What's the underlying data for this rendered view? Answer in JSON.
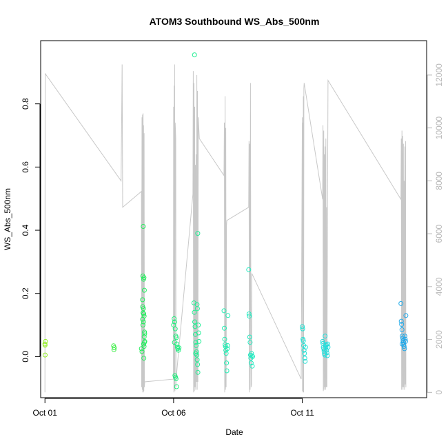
{
  "chart_data": {
    "type": "scatter",
    "title": "ATOM3 Southbound WS_Abs_500nm",
    "xlabel": "Date",
    "ylabel": "WS_Abs_500nm",
    "xlim": [
      "2016-09-30T20:00",
      "2016-10-15T20:00"
    ],
    "ylim": [
      -0.13,
      1.0
    ],
    "y2lim": [
      -200,
      13300
    ],
    "x_ticks": [
      {
        "label": "Oct 01",
        "value": "2016-10-01"
      },
      {
        "label": "Oct 06",
        "value": "2016-10-06"
      },
      {
        "label": "Oct 11",
        "value": "2016-10-11"
      }
    ],
    "y_ticks": [
      {
        "label": "0.0",
        "value": 0.0
      },
      {
        "label": "0.2",
        "value": 0.2
      },
      {
        "label": "0.4",
        "value": 0.4
      },
      {
        "label": "0.6",
        "value": 0.6
      },
      {
        "label": "0.8",
        "value": 0.8
      }
    ],
    "y2_ticks": [
      {
        "label": "0",
        "value": 0
      },
      {
        "label": "2000",
        "value": 2000
      },
      {
        "label": "4000",
        "value": 4000
      },
      {
        "label": "6000",
        "value": 6000
      },
      {
        "label": "8000",
        "value": 8000
      },
      {
        "label": "10000",
        "value": 10000
      },
      {
        "label": "12000",
        "value": 12000
      }
    ],
    "grid": false,
    "colors": {
      "line": "#c8c8c8",
      "axis": "#000000",
      "axis_right": "#b8b8b8"
    },
    "point_color_scale": [
      "#99ee22",
      "#22ee55",
      "#22eebb",
      "#22dddd",
      "#2299ee"
    ],
    "series": [
      {
        "kind": "points",
        "points": [
          [
            "2016-10-01T00:00",
            0.04
          ],
          [
            "2016-10-01T00:30",
            0.048
          ],
          [
            "2016-10-01T00:05",
            0.036
          ],
          [
            "2016-10-01T00:10",
            0.005
          ],
          [
            "2016-10-03T16:00",
            0.034
          ],
          [
            "2016-10-03T16:20",
            0.022
          ],
          [
            "2016-10-03T16:40",
            0.028
          ],
          [
            "2016-10-04T18:00",
            0.025
          ],
          [
            "2016-10-04T18:30",
            0.016
          ],
          [
            "2016-10-04T19:00",
            0.18
          ],
          [
            "2016-10-04T19:20",
            0.255
          ],
          [
            "2016-10-04T19:40",
            0.412
          ],
          [
            "2016-10-04T20:00",
            0.245
          ],
          [
            "2016-10-04T20:20",
            0.25
          ],
          [
            "2016-10-04T20:40",
            0.21
          ],
          [
            "2016-10-04T19:10",
            0.158
          ],
          [
            "2016-10-04T19:30",
            0.138
          ],
          [
            "2016-10-04T19:50",
            0.152
          ],
          [
            "2016-10-04T20:10",
            0.135
          ],
          [
            "2016-10-04T20:30",
            0.128
          ],
          [
            "2016-10-04T20:50",
            0.078
          ],
          [
            "2016-10-04T21:00",
            0.072
          ],
          [
            "2016-10-04T20:05",
            0.04
          ],
          [
            "2016-10-04T20:25",
            0.032
          ],
          [
            "2016-10-04T20:45",
            0.045
          ],
          [
            "2016-10-04T21:10",
            0.048
          ],
          [
            "2016-10-04T20:15",
            -0.005
          ],
          [
            "2016-10-04T19:55",
            0.11
          ],
          [
            "2016-10-04T20:35",
            0.063
          ],
          [
            "2016-10-04T19:05",
            0.118
          ],
          [
            "2016-10-04T19:25",
            0.1
          ],
          [
            "2016-10-06T00:00",
            0.1
          ],
          [
            "2016-10-06T00:30",
            0.12
          ],
          [
            "2016-10-06T01:00",
            0.11
          ],
          [
            "2016-10-06T01:30",
            0.088
          ],
          [
            "2016-10-06T02:00",
            0.065
          ],
          [
            "2016-10-06T02:30",
            0.06
          ],
          [
            "2016-10-06T03:00",
            0.04
          ],
          [
            "2016-10-06T03:30",
            0.03
          ],
          [
            "2016-10-06T04:00",
            0.025
          ],
          [
            "2016-10-06T04:30",
            0.02
          ],
          [
            "2016-10-06T05:00",
            0.028
          ],
          [
            "2016-10-06T01:15",
            -0.06
          ],
          [
            "2016-10-06T01:45",
            -0.065
          ],
          [
            "2016-10-06T02:15",
            -0.07
          ],
          [
            "2016-10-06T02:45",
            -0.095
          ],
          [
            "2016-10-06T00:45",
            0.045
          ],
          [
            "2016-10-06T19:00",
            0.17
          ],
          [
            "2016-10-06T19:20",
            0.14
          ],
          [
            "2016-10-06T19:40",
            0.11
          ],
          [
            "2016-10-06T20:00",
            0.095
          ],
          [
            "2016-10-06T20:20",
            0.07
          ],
          [
            "2016-10-06T20:40",
            0.045
          ],
          [
            "2016-10-06T21:00",
            0.035
          ],
          [
            "2016-10-06T21:20",
            0.015
          ],
          [
            "2016-10-06T21:40",
            0.005
          ],
          [
            "2016-10-06T22:00",
            -0.01
          ],
          [
            "2016-10-06T22:20",
            -0.025
          ],
          [
            "2016-10-06T22:40",
            -0.05
          ],
          [
            "2016-10-06T21:50",
            0.165
          ],
          [
            "2016-10-06T22:10",
            0.152
          ],
          [
            "2016-10-06T22:30",
            0.39
          ],
          [
            "2016-10-06T23:00",
            0.1
          ],
          [
            "2016-10-06T23:20",
            0.075
          ],
          [
            "2016-10-06T23:40",
            0.048
          ],
          [
            "2016-10-06T19:30",
            0.955
          ],
          [
            "2016-10-06T20:30",
            0.01
          ],
          [
            "2016-10-07T23:00",
            0.145
          ],
          [
            "2016-10-07T23:20",
            0.09
          ],
          [
            "2016-10-07T23:40",
            0.055
          ],
          [
            "2016-10-08T00:00",
            0.038
          ],
          [
            "2016-10-08T00:20",
            0.032
          ],
          [
            "2016-10-08T00:40",
            0.02
          ],
          [
            "2016-10-08T01:00",
            0.01
          ],
          [
            "2016-10-08T01:20",
            -0.02
          ],
          [
            "2016-10-08T01:40",
            -0.045
          ],
          [
            "2016-10-08T02:00",
            0.025
          ],
          [
            "2016-10-08T02:20",
            0.035
          ],
          [
            "2016-10-08T02:40",
            0.13
          ],
          [
            "2016-10-08T22:00",
            0.275
          ],
          [
            "2016-10-08T22:20",
            0.135
          ],
          [
            "2016-10-08T22:40",
            0.128
          ],
          [
            "2016-10-08T23:00",
            0.062
          ],
          [
            "2016-10-08T23:20",
            0.045
          ],
          [
            "2016-10-08T23:40",
            0.005
          ],
          [
            "2016-10-09T00:00",
            -0.005
          ],
          [
            "2016-10-09T00:20",
            -0.02
          ],
          [
            "2016-10-09T00:40",
            0.01
          ],
          [
            "2016-10-09T01:00",
            0.003
          ],
          [
            "2016-10-09T01:20",
            -0.03
          ],
          [
            "2016-10-09T01:40",
            0.0
          ],
          [
            "2016-10-11T00:00",
            0.095
          ],
          [
            "2016-10-11T00:20",
            0.088
          ],
          [
            "2016-10-11T00:40",
            0.055
          ],
          [
            "2016-10-11T01:00",
            0.05
          ],
          [
            "2016-10-11T01:20",
            0.035
          ],
          [
            "2016-10-11T01:40",
            0.02
          ],
          [
            "2016-10-11T02:00",
            0.01
          ],
          [
            "2016-10-11T02:20",
            -0.005
          ],
          [
            "2016-10-11T02:40",
            -0.015
          ],
          [
            "2016-10-11T03:00",
            0.03
          ],
          [
            "2016-10-11T19:00",
            0.048
          ],
          [
            "2016-10-11T19:20",
            0.042
          ],
          [
            "2016-10-11T19:40",
            0.03
          ],
          [
            "2016-10-11T20:00",
            0.025
          ],
          [
            "2016-10-11T20:20",
            0.018
          ],
          [
            "2016-10-11T20:40",
            0.01
          ],
          [
            "2016-10-11T21:00",
            0.005
          ],
          [
            "2016-10-11T21:20",
            0.065
          ],
          [
            "2016-10-11T21:40",
            0.035
          ],
          [
            "2016-10-11T22:00",
            0.028
          ],
          [
            "2016-10-11T22:20",
            0.038
          ],
          [
            "2016-10-11T22:40",
            0.02
          ],
          [
            "2016-10-11T23:00",
            0.012
          ],
          [
            "2016-10-11T23:20",
            0.003
          ],
          [
            "2016-10-11T23:40",
            0.04
          ],
          [
            "2016-10-12T00:00",
            0.03
          ],
          [
            "2016-10-14T20:00",
            0.168
          ],
          [
            "2016-10-14T20:20",
            0.112
          ],
          [
            "2016-10-14T20:40",
            0.102
          ],
          [
            "2016-10-14T21:00",
            0.085
          ],
          [
            "2016-10-14T21:20",
            0.065
          ],
          [
            "2016-10-14T21:40",
            0.058
          ],
          [
            "2016-10-14T22:00",
            0.05
          ],
          [
            "2016-10-14T22:20",
            0.045
          ],
          [
            "2016-10-14T22:40",
            0.038
          ],
          [
            "2016-10-14T23:00",
            0.032
          ],
          [
            "2016-10-14T23:20",
            0.025
          ],
          [
            "2016-10-14T23:40",
            0.065
          ],
          [
            "2016-10-15T00:00",
            0.055
          ],
          [
            "2016-10-15T00:20",
            0.048
          ],
          [
            "2016-10-15T00:40",
            0.13
          ],
          [
            "2016-10-14T21:10",
            0.04
          ]
        ]
      },
      {
        "kind": "line-right-axis",
        "points": [
          [
            "2016-10-01T00:00",
            0
          ],
          [
            "2016-10-01T00:10",
            12000
          ],
          [
            "2016-10-01T00:20",
            12050
          ],
          [
            "2016-10-03T23:00",
            8000
          ],
          [
            "2016-10-04T00:00",
            12400
          ],
          [
            "2016-10-04T00:30",
            7000
          ],
          [
            "2016-10-04T18:00",
            7600
          ],
          [
            "2016-10-04T18:10",
            200
          ],
          [
            "2016-10-04T18:30",
            10400
          ],
          [
            "2016-10-04T18:45",
            100
          ],
          [
            "2016-10-04T19:00",
            10500
          ],
          [
            "2016-10-04T19:15",
            0
          ],
          [
            "2016-10-04T19:30",
            10550
          ],
          [
            "2016-10-04T19:45",
            0
          ],
          [
            "2016-10-04T20:00",
            10100
          ],
          [
            "2016-10-04T20:15",
            50
          ],
          [
            "2016-10-04T20:30",
            9800
          ],
          [
            "2016-10-04T20:45",
            200
          ],
          [
            "2016-10-04T21:00",
            400
          ],
          [
            "2016-10-05T23:50",
            500
          ],
          [
            "2016-10-06T00:00",
            10800
          ],
          [
            "2016-10-06T00:15",
            0
          ],
          [
            "2016-10-06T00:30",
            11600
          ],
          [
            "2016-10-06T00:45",
            100
          ],
          [
            "2016-10-06T01:00",
            12400
          ],
          [
            "2016-10-06T01:15",
            50
          ],
          [
            "2016-10-06T01:30",
            10200
          ],
          [
            "2016-10-06T02:00",
            9600
          ],
          [
            "2016-10-06T02:10",
            200
          ],
          [
            "2016-10-06T02:20",
            500
          ],
          [
            "2016-10-06T18:00",
            7500
          ],
          [
            "2016-10-06T18:20",
            12150
          ],
          [
            "2016-10-06T18:40",
            0
          ],
          [
            "2016-10-06T19:00",
            11700
          ],
          [
            "2016-10-06T19:20",
            50
          ],
          [
            "2016-10-06T19:40",
            10800
          ],
          [
            "2016-10-06T20:00",
            200
          ],
          [
            "2016-10-06T20:20",
            8600
          ],
          [
            "2016-10-06T20:40",
            100
          ],
          [
            "2016-10-06T21:00",
            9000
          ],
          [
            "2016-10-06T21:20",
            400
          ],
          [
            "2016-10-06T21:40",
            12000
          ],
          [
            "2016-10-06T22:00",
            100
          ],
          [
            "2016-10-06T22:20",
            11400
          ],
          [
            "2016-10-06T22:40",
            400
          ],
          [
            "2016-10-06T23:00",
            10400
          ],
          [
            "2016-10-07T00:00",
            9600
          ],
          [
            "2016-10-07T23:00",
            8200
          ],
          [
            "2016-10-07T23:20",
            10200
          ],
          [
            "2016-10-07T23:40",
            0
          ],
          [
            "2016-10-08T00:00",
            11200
          ],
          [
            "2016-10-08T00:20",
            100
          ],
          [
            "2016-10-08T00:40",
            10000
          ],
          [
            "2016-10-08T01:00",
            200
          ],
          [
            "2016-10-08T01:20",
            6300
          ],
          [
            "2016-10-08T01:40",
            6500
          ],
          [
            "2016-10-08T22:00",
            7000
          ],
          [
            "2016-10-08T22:20",
            9500
          ],
          [
            "2016-10-08T22:40",
            0
          ],
          [
            "2016-10-08T23:00",
            9400
          ],
          [
            "2016-10-08T23:20",
            100
          ],
          [
            "2016-10-08T23:40",
            11700
          ],
          [
            "2016-10-09T00:00",
            4400
          ],
          [
            "2016-10-09T00:20",
            200
          ],
          [
            "2016-10-09T00:40",
            300
          ],
          [
            "2016-10-09T01:00",
            4500
          ],
          [
            "2016-10-10T23:00",
            500
          ],
          [
            "2016-10-11T00:00",
            10400
          ],
          [
            "2016-10-11T00:15",
            50
          ],
          [
            "2016-10-11T00:30",
            10200
          ],
          [
            "2016-10-11T00:45",
            0
          ],
          [
            "2016-10-11T01:00",
            11200
          ],
          [
            "2016-10-11T01:15",
            0
          ],
          [
            "2016-10-11T01:30",
            11500
          ],
          [
            "2016-10-11T01:45",
            11700
          ],
          [
            "2016-10-11T19:00",
            7300
          ],
          [
            "2016-10-11T19:20",
            10100
          ],
          [
            "2016-10-11T19:40",
            50
          ],
          [
            "2016-10-11T20:00",
            9900
          ],
          [
            "2016-10-11T20:20",
            100
          ],
          [
            "2016-10-11T20:40",
            9000
          ],
          [
            "2016-10-11T21:00",
            200
          ],
          [
            "2016-10-11T21:20",
            9300
          ],
          [
            "2016-10-11T21:40",
            100
          ],
          [
            "2016-10-11T22:00",
            9600
          ],
          [
            "2016-10-11T22:20",
            200
          ],
          [
            "2016-10-11T22:40",
            7000
          ],
          [
            "2016-10-11T23:00",
            200
          ],
          [
            "2016-10-12T00:00",
            11800
          ],
          [
            "2016-10-14T20:00",
            7300
          ],
          [
            "2016-10-14T20:20",
            9600
          ],
          [
            "2016-10-14T20:40",
            100
          ],
          [
            "2016-10-14T21:00",
            9900
          ],
          [
            "2016-10-14T21:20",
            200
          ],
          [
            "2016-10-14T21:40",
            9700
          ],
          [
            "2016-10-14T22:00",
            100
          ],
          [
            "2016-10-14T22:20",
            9400
          ],
          [
            "2016-10-14T22:40",
            200
          ],
          [
            "2016-10-14T23:00",
            8000
          ],
          [
            "2016-10-14T23:20",
            100
          ],
          [
            "2016-10-14T23:40",
            9300
          ],
          [
            "2016-10-15T00:00",
            300
          ],
          [
            "2016-10-15T00:20",
            9500
          ],
          [
            "2016-10-15T00:40",
            200
          ]
        ]
      }
    ]
  }
}
